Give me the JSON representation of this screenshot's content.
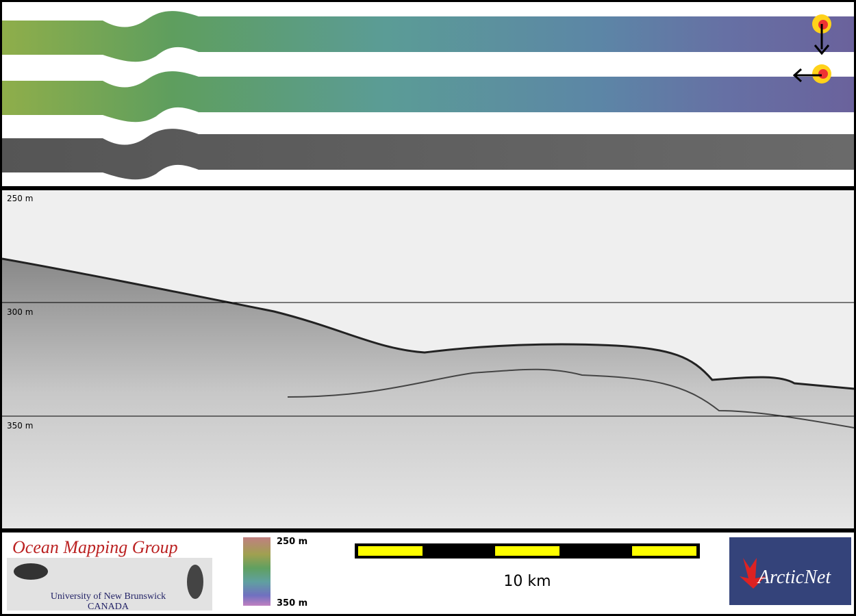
{
  "profile": {
    "depth_labels": [
      "250 m",
      "300 m",
      "350 m"
    ]
  },
  "footer": {
    "logo_title": "Ocean Mapping Group",
    "logo_line1": "University of New Brunswick",
    "logo_line2": "CANADA",
    "colorbar_top": "250 m",
    "colorbar_bottom": "350 m",
    "scale_label": "10 km",
    "partner_logo": "ArcticNet"
  }
}
